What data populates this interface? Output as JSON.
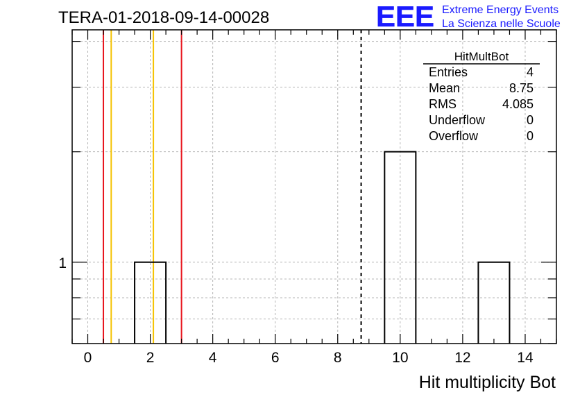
{
  "run_title": "TERA-01-2018-09-14-00028",
  "logo": {
    "letters": "EEE",
    "line1": "Extreme Energy Events",
    "line2": "La Scienza nelle Scuole",
    "color": "#1a1aff"
  },
  "stats": {
    "name": "HitMultBot",
    "rows": [
      {
        "label": "Entries",
        "value": "4"
      },
      {
        "label": "Mean",
        "value": "8.75"
      },
      {
        "label": "RMS",
        "value": "4.085"
      },
      {
        "label": "Underflow",
        "value": "0"
      },
      {
        "label": "Overflow",
        "value": "0"
      }
    ]
  },
  "chart_data": {
    "type": "bar",
    "title": "TERA-01-2018-09-14-00028",
    "xlabel": "Hit multiplicity Bot",
    "ylabel": "",
    "log_y": true,
    "xlim": [
      -0.5,
      15.0
    ],
    "ylim": [
      0.6,
      4.3
    ],
    "x_ticks": [
      0,
      2,
      4,
      6,
      8,
      10,
      12,
      14
    ],
    "y_tick_labels": [
      {
        "value": 1,
        "label": "1"
      }
    ],
    "grid": true,
    "bins": [
      {
        "low": 1.5,
        "high": 2.5,
        "count": 1
      },
      {
        "low": 9.5,
        "high": 10.5,
        "count": 2
      },
      {
        "low": 12.5,
        "high": 13.5,
        "count": 1
      }
    ],
    "mean_line": {
      "x": 8.75,
      "style": "dashed",
      "color": "#000000"
    },
    "reference_lines": [
      {
        "x": 0.5,
        "color": "#e8141c"
      },
      {
        "x": 0.75,
        "color": "#f5c200"
      },
      {
        "x": 2.1,
        "color": "#f5c200"
      },
      {
        "x": 3.0,
        "color": "#e8141c"
      }
    ]
  }
}
